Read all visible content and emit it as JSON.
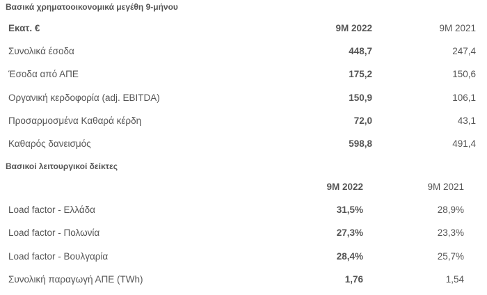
{
  "financial": {
    "title": "Βασικά χρηματοοικονομικά μεγέθη 9-μήνου",
    "header": {
      "label": "Εκατ. €",
      "col1": "9M 2022",
      "col2": "9M 2021"
    },
    "rows": [
      {
        "label": "Συνολικά έσοδα",
        "v2022": "448,7",
        "v2021": "247,4"
      },
      {
        "label": "Έσοδα από ΑΠΕ",
        "v2022": "175,2",
        "v2021": "150,6"
      },
      {
        "label": "Οργανική κερδοφορία (adj. EBITDA)",
        "v2022": "150,9",
        "v2021": "106,1"
      },
      {
        "label": "Προσαρμοσμένα Καθαρά κέρδη",
        "v2022": "72,0",
        "v2021": "43,1"
      },
      {
        "label": "Καθαρός δανεισμός",
        "v2022": "598,8",
        "v2021": "491,4"
      }
    ]
  },
  "operational": {
    "title": "Βασικοί λειτουργικοί δείκτες",
    "header": {
      "col1": "9M 2022",
      "col2": "9M 2021"
    },
    "rows": [
      {
        "label": "Load factor - Ελλάδα",
        "v2022": "31,5%",
        "v2021": "28,9%"
      },
      {
        "label": "Load factor - Πολωνία",
        "v2022": "27,3%",
        "v2021": "23,3%"
      },
      {
        "label": "Load factor - Βουλγαρία",
        "v2022": "28,4%",
        "v2021": "25,7%"
      },
      {
        "label": "Συνολική παραγωγή ΑΠΕ (TWh)",
        "v2022": "1,76",
        "v2021": "1,54"
      }
    ]
  }
}
